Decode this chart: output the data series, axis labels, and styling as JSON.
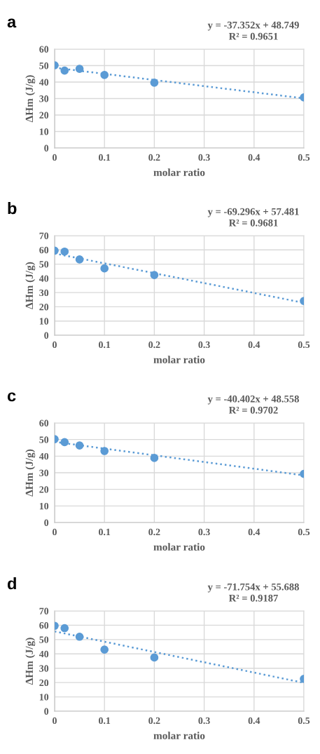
{
  "chart_data": [
    {
      "type": "scatter",
      "title": "a",
      "xlabel": "molar ratio",
      "ylabel": "ΔHm (J/g)",
      "annotations": [
        "y = -37.352x + 48.749",
        "R² = 0.9651"
      ],
      "xlim": [
        0,
        0.5
      ],
      "xticks": [
        0,
        0.1,
        0.2,
        0.3,
        0.4,
        0.5
      ],
      "ylim": [
        0,
        60
      ],
      "yticks": [
        0,
        10,
        20,
        30,
        40,
        50,
        60
      ],
      "grid": true,
      "series": [
        {
          "color": "#5b9bd5",
          "marker": "circle",
          "x": [
            0,
            0.02,
            0.05,
            0.1,
            0.2,
            0.5
          ],
          "values": [
            50.2,
            47,
            48,
            44.3,
            39.6,
            30.7
          ]
        },
        {
          "type": "line",
          "color": "#5b9bd5",
          "marker": "none",
          "line_style": "dotted",
          "x": [
            0,
            0.5
          ],
          "values": [
            48.7,
            30.1
          ]
        }
      ]
    },
    {
      "type": "scatter",
      "title": "b",
      "xlabel": "molar ratio",
      "ylabel": "ΔHm (J/g)",
      "annotations": [
        "y = -69.296x + 57.481",
        "R² = 0.9681"
      ],
      "xlim": [
        0,
        0.5
      ],
      "xticks": [
        0,
        0.1,
        0.2,
        0.3,
        0.4,
        0.5
      ],
      "ylim": [
        0,
        70
      ],
      "yticks": [
        0,
        10,
        20,
        30,
        40,
        50,
        60,
        70
      ],
      "grid": true,
      "series": [
        {
          "color": "#5b9bd5",
          "marker": "circle",
          "x": [
            0,
            0.02,
            0.05,
            0.1,
            0.2,
            0.5
          ],
          "values": [
            59.5,
            58.8,
            53.3,
            47,
            42.3,
            24.1
          ]
        },
        {
          "type": "line",
          "color": "#5b9bd5",
          "marker": "none",
          "line_style": "dotted",
          "x": [
            0,
            0.5
          ],
          "values": [
            57.5,
            22.8
          ]
        }
      ]
    },
    {
      "type": "scatter",
      "title": "c",
      "xlabel": "molar ratio",
      "ylabel": "ΔHm (J/g)",
      "annotations": [
        "y = -40.402x + 48.558",
        "R² = 0.9702"
      ],
      "xlim": [
        0,
        0.5
      ],
      "xticks": [
        0,
        0.1,
        0.2,
        0.3,
        0.4,
        0.5
      ],
      "ylim": [
        0,
        60
      ],
      "yticks": [
        0,
        10,
        20,
        30,
        40,
        50,
        60
      ],
      "grid": true,
      "series": [
        {
          "color": "#5b9bd5",
          "marker": "circle",
          "x": [
            0,
            0.02,
            0.05,
            0.1,
            0.2,
            0.5
          ],
          "values": [
            50.2,
            48.4,
            46.4,
            43.1,
            38.9,
            29.3
          ]
        },
        {
          "type": "line",
          "color": "#5b9bd5",
          "marker": "none",
          "line_style": "dotted",
          "x": [
            0,
            0.5
          ],
          "values": [
            48.6,
            28.4
          ]
        }
      ]
    },
    {
      "type": "scatter",
      "title": "d",
      "xlabel": "molar ratio",
      "ylabel": "ΔHm (J/g)",
      "annotations": [
        "y = -71.754x + 55.688",
        "R² = 0.9187"
      ],
      "xlim": [
        0,
        0.5
      ],
      "xticks": [
        0,
        0.1,
        0.2,
        0.3,
        0.4,
        0.5
      ],
      "ylim": [
        0,
        70
      ],
      "yticks": [
        0,
        10,
        20,
        30,
        40,
        50,
        60,
        70
      ],
      "grid": true,
      "series": [
        {
          "color": "#5b9bd5",
          "marker": "circle",
          "x": [
            0,
            0.02,
            0.05,
            0.1,
            0.2,
            0.5
          ],
          "values": [
            59.6,
            58,
            52,
            43,
            37.5,
            22.6
          ]
        },
        {
          "type": "line",
          "color": "#5b9bd5",
          "marker": "none",
          "line_style": "dotted",
          "x": [
            0,
            0.5
          ],
          "values": [
            55.7,
            19.8
          ]
        }
      ]
    }
  ]
}
